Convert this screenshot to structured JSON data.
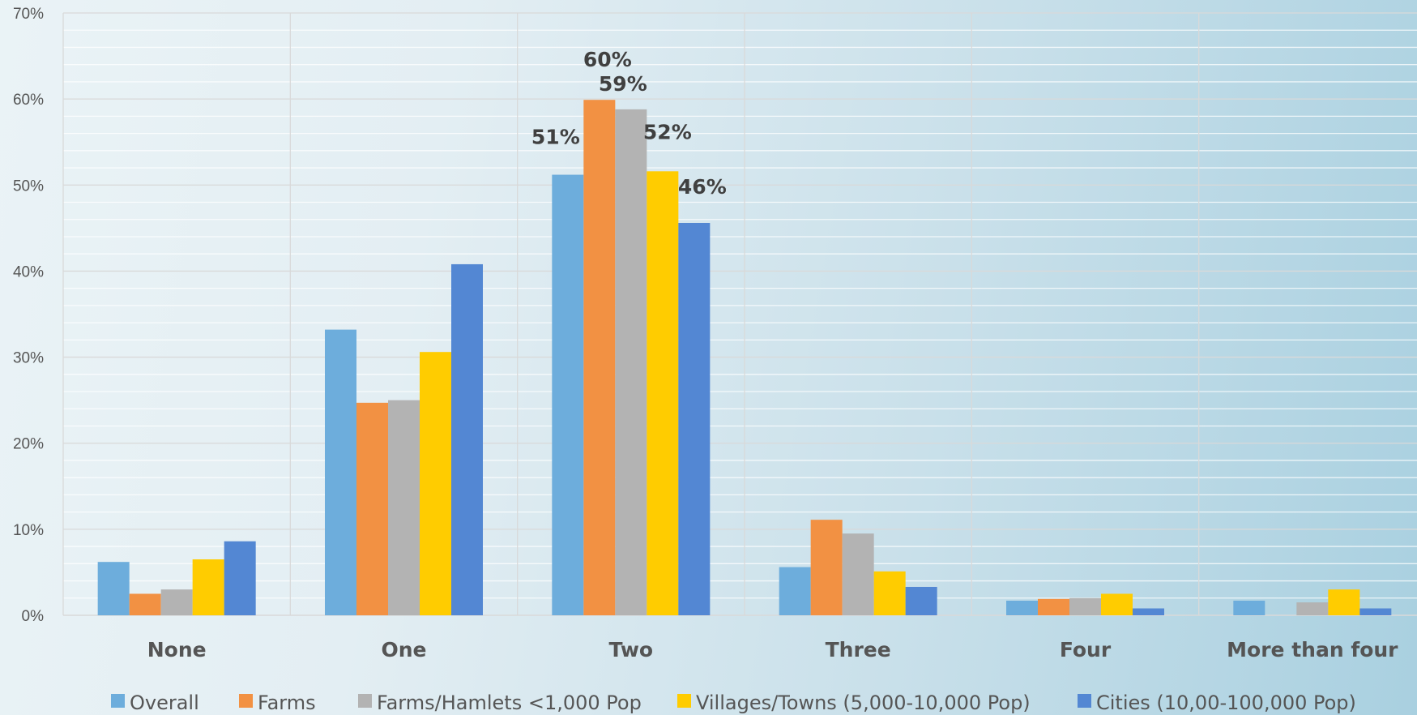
{
  "chart_data": {
    "type": "bar",
    "title": "",
    "xlabel": "",
    "ylabel": "",
    "ylim": [
      0,
      70
    ],
    "y_ticks": [
      "0%",
      "10%",
      "20%",
      "30%",
      "40%",
      "50%",
      "60%",
      "70%"
    ],
    "grid": true,
    "legend_position": "bottom",
    "categories": [
      "None",
      "One",
      "Two",
      "Three",
      "Four",
      "More than four"
    ],
    "series": [
      {
        "name": "Overall",
        "color": "#6daddc",
        "values": [
          6.2,
          33.2,
          51.2,
          5.6,
          1.7,
          1.7
        ]
      },
      {
        "name": "Farms",
        "color": "#f29143",
        "values": [
          2.5,
          24.7,
          59.9,
          11.1,
          1.9,
          0
        ]
      },
      {
        "name": "Farms/Hamlets <1,000 Pop",
        "color": "#b3b3b3",
        "values": [
          3.0,
          25.0,
          58.8,
          9.5,
          2.0,
          1.5
        ]
      },
      {
        "name": "Villages/Towns (5,000-10,000 Pop)",
        "color": "#ffcc00",
        "values": [
          6.5,
          30.6,
          51.6,
          5.1,
          2.5,
          3.0
        ]
      },
      {
        "name": "Cities (10,00-100,000 Pop)",
        "color": "#5387d3",
        "values": [
          8.6,
          40.8,
          45.6,
          3.3,
          0.8,
          0.8
        ]
      }
    ],
    "data_labels": [
      {
        "category": "Two",
        "series": "Overall",
        "text": "51%"
      },
      {
        "category": "Two",
        "series": "Farms",
        "text": "60%"
      },
      {
        "category": "Two",
        "series": "Farms/Hamlets <1,000 Pop",
        "text": "59%"
      },
      {
        "category": "Two",
        "series": "Villages/Towns (5,000-10,000 Pop)",
        "text": "52%"
      },
      {
        "category": "Two",
        "series": "Cities (10,00-100,000 Pop)",
        "text": "46%"
      }
    ]
  }
}
